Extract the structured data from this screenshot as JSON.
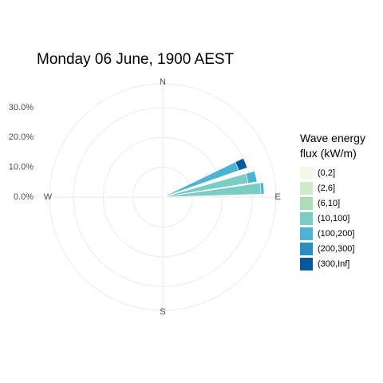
{
  "chart_data": {
    "type": "polar-bar",
    "title": "Monday 06 June, 1900 AEST",
    "directions": [
      "N",
      "E",
      "S",
      "W"
    ],
    "radial_ticks": [
      "0.0%",
      "10.0%",
      "20.0%",
      "30.0%"
    ],
    "radial_tick_values": [
      0,
      10,
      20,
      30
    ],
    "rlim": [
      0,
      38
    ],
    "grid": true,
    "legend": {
      "title_lines": [
        "Wave energy",
        "flux (kW/m)"
      ],
      "position": "right",
      "items": [
        {
          "label": "(0,2]",
          "color": "#f2f9e9"
        },
        {
          "label": "(2,6]",
          "color": "#cdebc5"
        },
        {
          "label": "(6,10]",
          "color": "#a8ddb5"
        },
        {
          "label": "(10,100]",
          "color": "#7bccc4"
        },
        {
          "label": "(100,200]",
          "color": "#4eb3d3"
        },
        {
          "label": "(200,300]",
          "color": "#2b8cbe"
        },
        {
          "label": "(300,Inf]",
          "color": "#08589e"
        }
      ]
    },
    "series": [
      {
        "direction_deg": 67.5,
        "segments": [
          {
            "class": "(100,200]",
            "value": 27
          },
          {
            "class": "(300,Inf]",
            "value": 3
          }
        ]
      },
      {
        "direction_deg": 77.5,
        "segments": [
          {
            "class": "(10,100]",
            "value": 29
          },
          {
            "class": "(100,200]",
            "value": 3
          }
        ]
      },
      {
        "direction_deg": 85,
        "segments": [
          {
            "class": "(10,100]",
            "value": 33
          },
          {
            "class": "(100,200]",
            "value": 1
          }
        ]
      }
    ]
  }
}
